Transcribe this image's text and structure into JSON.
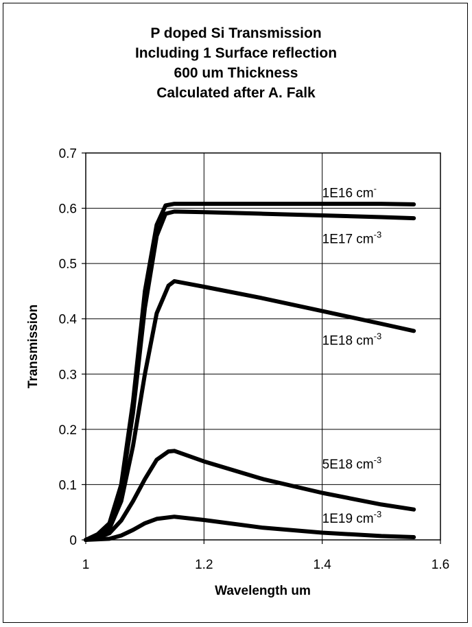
{
  "chart_data": {
    "type": "line",
    "title_lines": [
      "P doped Si Transmission",
      "Including 1 Surface reflection",
      "600 um Thickness",
      "Calculated after A. Falk"
    ],
    "xlabel": "Wavelength um",
    "ylabel": "Transmission",
    "xlim": [
      1,
      1.6
    ],
    "ylim": [
      0,
      0.7
    ],
    "xticks": [
      "1",
      "1.2",
      "1.4",
      "1.6"
    ],
    "yticks": [
      "0",
      "0.1",
      "0.2",
      "0.3",
      "0.4",
      "0.5",
      "0.6",
      "0.7"
    ],
    "grid": true,
    "line_color": "#000000",
    "series": [
      {
        "name": "1E16 cm-",
        "label_main": "1E16 cm",
        "label_sup": "-",
        "label_pos": [
          1.4,
          0.62
        ],
        "points": [
          [
            1.0,
            0.0
          ],
          [
            1.02,
            0.01
          ],
          [
            1.04,
            0.03
          ],
          [
            1.06,
            0.1
          ],
          [
            1.08,
            0.25
          ],
          [
            1.1,
            0.45
          ],
          [
            1.12,
            0.57
          ],
          [
            1.135,
            0.605
          ],
          [
            1.15,
            0.608
          ],
          [
            1.2,
            0.608
          ],
          [
            1.3,
            0.608
          ],
          [
            1.4,
            0.608
          ],
          [
            1.5,
            0.608
          ],
          [
            1.555,
            0.607
          ]
        ]
      },
      {
        "name": "1E17 cm-3",
        "label_main": "1E17 cm",
        "label_sup": "-3",
        "label_pos": [
          1.4,
          0.537
        ],
        "points": [
          [
            1.0,
            0.0
          ],
          [
            1.02,
            0.008
          ],
          [
            1.04,
            0.027
          ],
          [
            1.06,
            0.09
          ],
          [
            1.08,
            0.23
          ],
          [
            1.1,
            0.42
          ],
          [
            1.12,
            0.55
          ],
          [
            1.135,
            0.59
          ],
          [
            1.15,
            0.594
          ],
          [
            1.2,
            0.593
          ],
          [
            1.3,
            0.59
          ],
          [
            1.4,
            0.587
          ],
          [
            1.5,
            0.584
          ],
          [
            1.555,
            0.582
          ]
        ]
      },
      {
        "name": "1E18 cm-3",
        "label_main": "1E18 cm",
        "label_sup": "-3",
        "label_pos": [
          1.4,
          0.353
        ],
        "points": [
          [
            1.0,
            0.0
          ],
          [
            1.02,
            0.006
          ],
          [
            1.04,
            0.02
          ],
          [
            1.06,
            0.07
          ],
          [
            1.08,
            0.17
          ],
          [
            1.1,
            0.3
          ],
          [
            1.12,
            0.41
          ],
          [
            1.14,
            0.46
          ],
          [
            1.15,
            0.468
          ],
          [
            1.2,
            0.458
          ],
          [
            1.3,
            0.437
          ],
          [
            1.4,
            0.414
          ],
          [
            1.5,
            0.391
          ],
          [
            1.555,
            0.378
          ]
        ]
      },
      {
        "name": "5E18 cm-3",
        "label_main": "5E18 cm",
        "label_sup": "-3",
        "label_pos": [
          1.4,
          0.129
        ],
        "points": [
          [
            1.0,
            0.0
          ],
          [
            1.02,
            0.004
          ],
          [
            1.04,
            0.012
          ],
          [
            1.06,
            0.035
          ],
          [
            1.08,
            0.07
          ],
          [
            1.1,
            0.11
          ],
          [
            1.12,
            0.145
          ],
          [
            1.14,
            0.16
          ],
          [
            1.15,
            0.161
          ],
          [
            1.2,
            0.142
          ],
          [
            1.3,
            0.11
          ],
          [
            1.4,
            0.085
          ],
          [
            1.5,
            0.064
          ],
          [
            1.555,
            0.055
          ]
        ]
      },
      {
        "name": "1E19 cm-3",
        "label_main": "1E19 cm",
        "label_sup": "-3",
        "label_pos": [
          1.4,
          0.031
        ],
        "points": [
          [
            1.0,
            0.0
          ],
          [
            1.04,
            0.002
          ],
          [
            1.06,
            0.008
          ],
          [
            1.08,
            0.018
          ],
          [
            1.1,
            0.03
          ],
          [
            1.12,
            0.038
          ],
          [
            1.15,
            0.042
          ],
          [
            1.2,
            0.036
          ],
          [
            1.3,
            0.022
          ],
          [
            1.4,
            0.013
          ],
          [
            1.5,
            0.007
          ],
          [
            1.555,
            0.005
          ]
        ]
      }
    ]
  }
}
